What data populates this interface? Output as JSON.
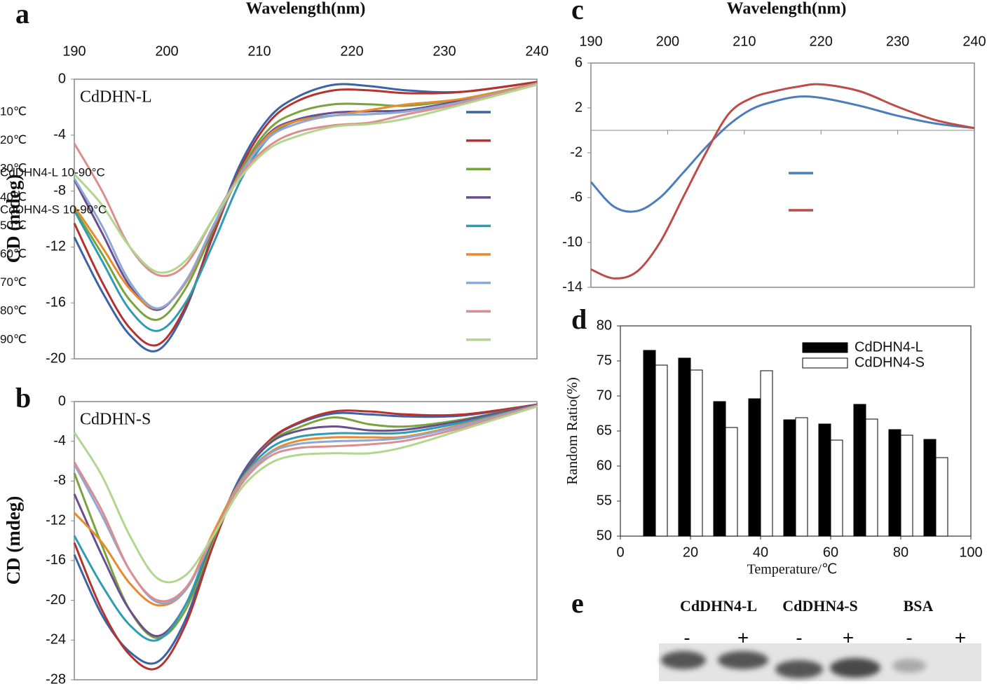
{
  "chart_data": [
    {
      "type": "line",
      "panel": "a",
      "xlabel": "Wavelength(nm)",
      "ylabel": "CD (mdeg)",
      "label": "CdDHN-L",
      "legend": "right",
      "xlim": [
        190,
        240
      ],
      "xticks": [
        190,
        200,
        210,
        220,
        230,
        240
      ],
      "ylim": [
        -20,
        0
      ],
      "yticks": [
        0,
        -4,
        -8,
        -12,
        -16,
        -20
      ],
      "x": [
        190,
        193,
        196,
        199,
        202,
        205,
        208,
        211,
        214,
        218,
        222,
        226,
        232,
        240
      ],
      "series": [
        {
          "name": "10℃",
          "color": "#3c63a8",
          "values": [
            -11.3,
            -15.2,
            -18.3,
            -19.4,
            -16.5,
            -11,
            -6,
            -2.8,
            -1.3,
            -0.4,
            -0.5,
            -0.8,
            -0.9,
            -0.2
          ]
        },
        {
          "name": "20℃",
          "color": "#b5322f",
          "values": [
            -10.3,
            -14.5,
            -17.8,
            -19,
            -16.3,
            -11.2,
            -6.3,
            -3.1,
            -1.6,
            -0.8,
            -0.8,
            -1,
            -0.9,
            -0.2
          ]
        },
        {
          "name": "30℃",
          "color": "#79a33d",
          "values": [
            -9.3,
            -12.5,
            -15.8,
            -17.2,
            -15,
            -10.8,
            -6.5,
            -3.6,
            -2.4,
            -1.8,
            -1.8,
            -1.9,
            -1.4,
            -0.3
          ]
        },
        {
          "name": "40℃",
          "color": "#6a4f8f",
          "values": [
            -7.2,
            -11,
            -14.8,
            -16.5,
            -14.5,
            -10.7,
            -6.7,
            -3.9,
            -2.9,
            -2.4,
            -2.3,
            -2.2,
            -1.5,
            -0.3
          ]
        },
        {
          "name": "50℃",
          "color": "#2e9cb3",
          "values": [
            -9.4,
            -13,
            -16.5,
            -18,
            -16,
            -11.8,
            -7.2,
            -4.2,
            -3,
            -2.6,
            -2.5,
            -2.3,
            -1.6,
            -0.3
          ]
        },
        {
          "name": "60℃",
          "color": "#e88a2e",
          "values": [
            -9.1,
            -12,
            -15,
            -16.4,
            -14.6,
            -10.6,
            -6.7,
            -4,
            -3,
            -2.6,
            -2.2,
            -1.8,
            -1.4,
            -0.3
          ]
        },
        {
          "name": "70℃",
          "color": "#8fa7d6",
          "values": [
            -7.1,
            -10.5,
            -14.5,
            -16.4,
            -14.5,
            -10.5,
            -6.7,
            -4.2,
            -3.2,
            -2.6,
            -2.5,
            -2.3,
            -1.6,
            -0.3
          ]
        },
        {
          "name": "80℃",
          "color": "#dc8e8e",
          "values": [
            -4.6,
            -8,
            -12,
            -14,
            -13.3,
            -10,
            -6.8,
            -4.8,
            -3.8,
            -3.3,
            -3.1,
            -2.5,
            -1.7,
            -0.3
          ]
        },
        {
          "name": "90℃",
          "color": "#b1d68e",
          "values": [
            -6.8,
            -9,
            -12,
            -13.8,
            -13,
            -10,
            -7,
            -5,
            -4.1,
            -3.4,
            -3.2,
            -2.8,
            -1.8,
            -0.4
          ]
        }
      ]
    },
    {
      "type": "line",
      "panel": "b",
      "ylabel": "CD (mdeg)",
      "label": "CdDHN-S",
      "xlim": [
        190,
        240
      ],
      "ylim": [
        -28,
        0
      ],
      "yticks": [
        0,
        -4,
        -8,
        -12,
        -16,
        -20,
        -24,
        -28
      ],
      "x": [
        190,
        193,
        196,
        199,
        202,
        205,
        208,
        211,
        214,
        218,
        222,
        226,
        232,
        240
      ],
      "series": [
        {
          "name": "10℃",
          "color": "#3c63a8",
          "values": [
            -15.4,
            -21.5,
            -25.2,
            -26.2,
            -22,
            -14,
            -7.5,
            -4,
            -2.3,
            -1.2,
            -1.3,
            -1.5,
            -1.4,
            -0.3
          ]
        },
        {
          "name": "20℃",
          "color": "#b5322f",
          "values": [
            -14.2,
            -21,
            -25.5,
            -26.8,
            -22.5,
            -14.5,
            -7.8,
            -4,
            -2.2,
            -1,
            -1,
            -1.3,
            -1.3,
            -0.3
          ]
        },
        {
          "name": "30℃",
          "color": "#79a33d",
          "values": [
            -7.2,
            -14.5,
            -21,
            -23.8,
            -21,
            -14,
            -7.8,
            -4.2,
            -2.7,
            -1.6,
            -2.3,
            -2.5,
            -1.8,
            -0.3
          ]
        },
        {
          "name": "40℃",
          "color": "#6a4f8f",
          "values": [
            -9.3,
            -15.5,
            -21,
            -23.6,
            -20.5,
            -13.7,
            -7.8,
            -4.3,
            -3,
            -2.5,
            -2.9,
            -2.8,
            -1.9,
            -0.3
          ]
        },
        {
          "name": "50℃",
          "color": "#2e9cb3",
          "values": [
            -13.5,
            -18.5,
            -22.5,
            -24,
            -20.5,
            -13.5,
            -7.9,
            -4.8,
            -3.6,
            -3.2,
            -3.2,
            -3.1,
            -2.1,
            -0.4
          ]
        },
        {
          "name": "60℃",
          "color": "#e88a2e",
          "values": [
            -11.2,
            -14.2,
            -18.3,
            -20.5,
            -19,
            -13.2,
            -8,
            -5.2,
            -4,
            -3.6,
            -3.6,
            -3.5,
            -2.3,
            -0.4
          ]
        },
        {
          "name": "70℃",
          "color": "#8fa7d6",
          "values": [
            -6.3,
            -11.5,
            -17,
            -20.2,
            -19,
            -13.6,
            -8.2,
            -5.3,
            -4.3,
            -4,
            -3.9,
            -3.6,
            -2.4,
            -0.4
          ]
        },
        {
          "name": "80℃",
          "color": "#dc8e8e",
          "values": [
            -6.1,
            -11,
            -17,
            -20,
            -18.8,
            -13.6,
            -8.4,
            -5.6,
            -4.7,
            -4.5,
            -4.3,
            -3.9,
            -2.6,
            -0.4
          ]
        },
        {
          "name": "90℃",
          "color": "#b1d68e",
          "values": [
            -3.1,
            -7.5,
            -13.5,
            -17.8,
            -17.5,
            -13.5,
            -8.8,
            -6.3,
            -5.4,
            -5.2,
            -5.2,
            -4.5,
            -2.8,
            -0.5
          ]
        }
      ]
    },
    {
      "type": "line",
      "panel": "c",
      "xlabel": "Wavelength(nm)",
      "legend": "left",
      "xlim": [
        190,
        240
      ],
      "xticks": [
        190,
        200,
        210,
        220,
        230,
        240
      ],
      "ylim": [
        -14,
        6
      ],
      "yticks": [
        6,
        2,
        -2,
        -6,
        -10,
        -14
      ],
      "x": [
        190,
        193,
        196,
        199,
        202,
        205,
        208,
        211,
        214,
        217,
        220,
        225,
        230,
        235,
        240
      ],
      "series": [
        {
          "name": "CdDHN4-L 10-90°C",
          "color": "#4a7ebb",
          "values": [
            -4.6,
            -6.8,
            -7.2,
            -6,
            -3.8,
            -1.5,
            0.5,
            1.9,
            2.6,
            3,
            2.9,
            2.2,
            1.3,
            0.6,
            0.2
          ]
        },
        {
          "name": "CdDHN4-S  10-90°C",
          "color": "#be4b48",
          "values": [
            -12.4,
            -13.2,
            -12.6,
            -10,
            -6,
            -2,
            1.5,
            2.9,
            3.5,
            3.9,
            4.1,
            3.5,
            2.1,
            0.9,
            0.2
          ]
        }
      ]
    },
    {
      "type": "bar",
      "panel": "d",
      "xlabel": "Temperature/℃",
      "ylabel": "Random Ratio(%)",
      "legend": "upper right",
      "xlim": [
        0,
        100
      ],
      "xticks": [
        0,
        20,
        40,
        60,
        80,
        100
      ],
      "ylim": [
        50,
        80
      ],
      "yticks": [
        50,
        55,
        60,
        65,
        70,
        75,
        80
      ],
      "x": [
        10,
        20,
        30,
        40,
        50,
        60,
        70,
        80,
        90
      ],
      "series": [
        {
          "name": "CdDHN4-L",
          "color": "#000000",
          "values": [
            76.5,
            75.4,
            69.2,
            69.6,
            66.6,
            66,
            68.8,
            65.2,
            63.8
          ]
        },
        {
          "name": "CdDHN4-S",
          "color": "#ffffff",
          "values": [
            74.4,
            73.7,
            65.5,
            73.6,
            66.9,
            63.7,
            66.7,
            64.4,
            61.2
          ]
        }
      ]
    }
  ],
  "gel": {
    "panel": "e",
    "lanes": [
      "CdDHN4-L",
      "CdDHN4-S",
      "BSA"
    ],
    "signs": [
      "-",
      "+",
      "-",
      "+",
      "-",
      "+"
    ]
  }
}
